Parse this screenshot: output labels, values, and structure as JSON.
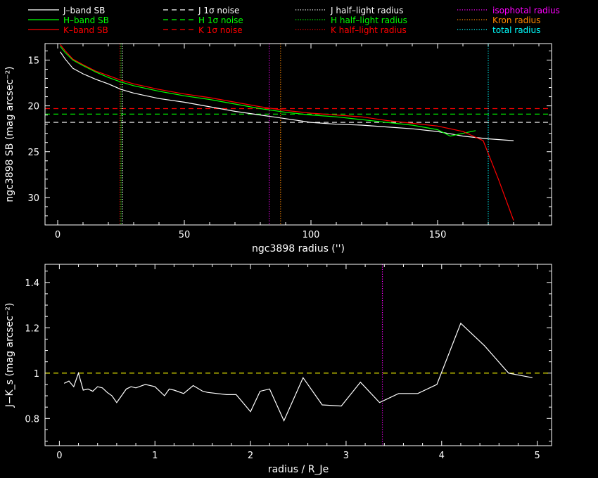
{
  "legend": [
    {
      "label": "J–band SB",
      "color": "#ffffff",
      "dash": "solid"
    },
    {
      "label": "H–band SB",
      "color": "#00ff00",
      "dash": "solid"
    },
    {
      "label": "K–band SB",
      "color": "#ff0000",
      "dash": "solid"
    },
    {
      "label": "J 1σ noise",
      "color": "#ffffff",
      "dash": "dashed"
    },
    {
      "label": "H 1σ noise",
      "color": "#00ff00",
      "dash": "dashed"
    },
    {
      "label": "K 1σ noise",
      "color": "#ff0000",
      "dash": "dashed"
    },
    {
      "label": "J half–light radius",
      "color": "#ffffff",
      "dash": "dotted"
    },
    {
      "label": "H half–light radius",
      "color": "#00ff00",
      "dash": "dotted"
    },
    {
      "label": "K half–light radius",
      "color": "#ff0000",
      "dash": "dotted"
    },
    {
      "label": "isophotal radius",
      "color": "#ff00ff",
      "dash": "dotted"
    },
    {
      "label": "Kron radius",
      "color": "#ff8800",
      "dash": "dotted"
    },
    {
      "label": "total radius",
      "color": "#00ffff",
      "dash": "dotted"
    }
  ],
  "chart_data": [
    {
      "type": "line",
      "xlabel": "ngc3898 radius ('')",
      "ylabel": "ngc3898 SB (mag arcsec⁻²)",
      "xlim": [
        -5,
        195
      ],
      "ylim": [
        33,
        13.2
      ],
      "y_inverted": true,
      "xticks": [
        0,
        50,
        100,
        150
      ],
      "yticks": [
        15,
        20,
        25,
        30
      ],
      "series": [
        {
          "name": "J–band SB",
          "color": "#ffffff",
          "x": [
            1,
            3,
            6,
            10,
            15,
            20,
            25,
            30,
            40,
            50,
            60,
            70,
            80,
            90,
            100,
            110,
            120,
            130,
            140,
            150,
            160,
            170,
            180
          ],
          "y": [
            14.1,
            14.9,
            15.9,
            16.5,
            17.1,
            17.6,
            18.2,
            18.6,
            19.2,
            19.6,
            20.1,
            20.6,
            21.0,
            21.4,
            21.8,
            22.0,
            22.1,
            22.3,
            22.5,
            22.8,
            23.3,
            23.6,
            23.8
          ]
        },
        {
          "name": "H–band SB",
          "color": "#00ff00",
          "x": [
            1,
            3,
            6,
            10,
            15,
            20,
            25,
            30,
            40,
            50,
            60,
            70,
            80,
            90,
            100,
            110,
            120,
            130,
            140,
            150,
            155,
            160,
            165
          ],
          "y": [
            13.5,
            14.2,
            15.0,
            15.6,
            16.3,
            16.9,
            17.4,
            17.8,
            18.4,
            18.9,
            19.3,
            19.8,
            20.3,
            20.7,
            21.0,
            21.2,
            21.5,
            21.8,
            22.1,
            22.6,
            23.3,
            23.0,
            22.7
          ]
        },
        {
          "name": "K–band SB",
          "color": "#ff0000",
          "x": [
            1,
            3,
            6,
            10,
            15,
            20,
            25,
            30,
            40,
            50,
            60,
            70,
            80,
            90,
            100,
            110,
            120,
            130,
            140,
            150,
            160,
            168,
            174,
            180
          ],
          "y": [
            13.3,
            14.0,
            14.9,
            15.5,
            16.2,
            16.7,
            17.2,
            17.6,
            18.2,
            18.7,
            19.1,
            19.6,
            20.1,
            20.5,
            20.8,
            21.0,
            21.2,
            21.6,
            21.9,
            22.2,
            22.8,
            23.8,
            28.0,
            32.5
          ]
        }
      ],
      "hlines": [
        {
          "name": "J 1σ noise",
          "y": 21.8,
          "color": "#ffffff"
        },
        {
          "name": "H 1σ noise",
          "y": 20.9,
          "color": "#00ff00"
        },
        {
          "name": "K 1σ noise",
          "y": 20.3,
          "color": "#ff0000"
        }
      ],
      "vlines": [
        {
          "name": "J half–light radius",
          "x": 25.6,
          "color": "#ffffff"
        },
        {
          "name": "H half–light radius",
          "x": 25.0,
          "color": "#00ff00"
        },
        {
          "name": "K half–light radius",
          "x": 24.6,
          "color": "#ff0000"
        },
        {
          "name": "isophotal radius",
          "x": 83.5,
          "color": "#ff00ff"
        },
        {
          "name": "Kron radius",
          "x": 88.0,
          "color": "#ff8800"
        },
        {
          "name": "total radius",
          "x": 170.0,
          "color": "#00ffff"
        }
      ]
    },
    {
      "type": "line",
      "xlabel": "radius / R_Je",
      "ylabel": "J−K_s (mag arcsec⁻²)",
      "xlim": [
        -0.15,
        5.15
      ],
      "ylim": [
        0.68,
        1.48
      ],
      "xticks": [
        0,
        1,
        2,
        3,
        4,
        5
      ],
      "yticks": [
        0.8,
        1,
        1.2,
        1.4
      ],
      "ytick_labels": [
        "0.8",
        "1",
        "1.2",
        "1.4"
      ],
      "series": [
        {
          "name": "J−Ks",
          "color": "#ffffff",
          "x": [
            0.05,
            0.1,
            0.15,
            0.2,
            0.25,
            0.3,
            0.35,
            0.4,
            0.45,
            0.5,
            0.55,
            0.6,
            0.7,
            0.75,
            0.8,
            0.9,
            1.0,
            1.1,
            1.15,
            1.2,
            1.3,
            1.4,
            1.5,
            1.55,
            1.65,
            1.75,
            1.85,
            2.0,
            2.1,
            2.2,
            2.35,
            2.55,
            2.75,
            2.95,
            3.15,
            3.35,
            3.55,
            3.75,
            3.95,
            4.2,
            4.45,
            4.7,
            4.95
          ],
          "y": [
            0.955,
            0.965,
            0.94,
            1.0,
            0.925,
            0.93,
            0.92,
            0.94,
            0.935,
            0.915,
            0.9,
            0.87,
            0.93,
            0.94,
            0.935,
            0.95,
            0.94,
            0.9,
            0.93,
            0.925,
            0.91,
            0.945,
            0.92,
            0.915,
            0.91,
            0.905,
            0.905,
            0.83,
            0.92,
            0.93,
            0.79,
            0.98,
            0.86,
            0.855,
            0.96,
            0.87,
            0.91,
            0.91,
            0.95,
            1.22,
            1.12,
            1.0,
            0.98
          ]
        }
      ],
      "hlines": [
        {
          "y": 1.0,
          "color": "#ffff00"
        }
      ],
      "vlines": [
        {
          "x": 3.38,
          "color": "#ff00ff"
        }
      ]
    }
  ]
}
